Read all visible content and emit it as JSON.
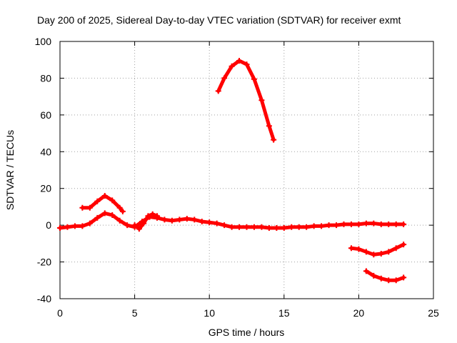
{
  "chart_data": {
    "type": "scatter",
    "title": "Day 200 of 2025, Sidereal Day-to-day VTEC variation (SDTVAR) for receiver exmt",
    "xlabel": "GPS time / hours",
    "ylabel": "SDTVAR / TECUs",
    "xlim": [
      0,
      25
    ],
    "ylim": [
      -40,
      100
    ],
    "xticks": [
      0,
      5,
      10,
      15,
      20,
      25
    ],
    "yticks": [
      -40,
      -20,
      0,
      20,
      40,
      60,
      80,
      100
    ],
    "grid": true,
    "legend": "none",
    "marker": "plus",
    "color": "#ff0000",
    "series": [
      {
        "name": "arc-main",
        "points": [
          [
            0.0,
            -1.5
          ],
          [
            0.5,
            -1.0
          ],
          [
            1.0,
            -0.5
          ],
          [
            1.5,
            -0.5
          ],
          [
            2.0,
            1.0
          ],
          [
            2.5,
            4.0
          ],
          [
            3.0,
            6.5
          ],
          [
            3.5,
            5.5
          ],
          [
            4.0,
            2.5
          ],
          [
            4.5,
            0.0
          ],
          [
            5.0,
            -1.0
          ],
          [
            5.5,
            2.0
          ],
          [
            6.0,
            4.5
          ],
          [
            6.5,
            4.0
          ],
          [
            7.0,
            3.0
          ],
          [
            7.5,
            2.5
          ],
          [
            8.0,
            3.0
          ],
          [
            8.5,
            3.5
          ],
          [
            9.0,
            3.0
          ],
          [
            9.5,
            2.0
          ],
          [
            10.0,
            1.5
          ],
          [
            10.5,
            1.0
          ],
          [
            11.0,
            0.0
          ],
          [
            11.5,
            -1.0
          ],
          [
            12.0,
            -1.0
          ],
          [
            12.5,
            -1.0
          ],
          [
            13.0,
            -1.0
          ],
          [
            13.5,
            -1.0
          ],
          [
            14.0,
            -1.5
          ],
          [
            14.5,
            -1.5
          ],
          [
            15.0,
            -1.5
          ],
          [
            15.5,
            -1.0
          ],
          [
            16.0,
            -1.0
          ],
          [
            16.5,
            -1.0
          ],
          [
            17.0,
            -0.5
          ],
          [
            17.5,
            -0.5
          ],
          [
            18.0,
            0.0
          ],
          [
            18.5,
            0.0
          ],
          [
            19.0,
            0.5
          ],
          [
            19.5,
            0.5
          ],
          [
            20.0,
            0.5
          ],
          [
            20.5,
            1.0
          ],
          [
            21.0,
            1.0
          ],
          [
            21.5,
            0.5
          ],
          [
            22.0,
            0.5
          ],
          [
            22.5,
            0.5
          ],
          [
            23.0,
            0.5
          ]
        ]
      },
      {
        "name": "arc-dip",
        "points": [
          [
            5.0,
            0.0
          ],
          [
            5.3,
            -2.0
          ],
          [
            5.6,
            1.0
          ],
          [
            5.9,
            5.0
          ],
          [
            6.2,
            6.0
          ],
          [
            6.5,
            5.0
          ]
        ]
      },
      {
        "name": "arc-early-peak",
        "points": [
          [
            1.5,
            9.5
          ],
          [
            2.0,
            9.5
          ],
          [
            2.5,
            13.0
          ],
          [
            3.0,
            16.0
          ],
          [
            3.5,
            13.5
          ],
          [
            4.0,
            9.5
          ],
          [
            4.2,
            7.5
          ]
        ]
      },
      {
        "name": "arc-high-peak",
        "points": [
          [
            10.6,
            73.0
          ],
          [
            11.0,
            80.0
          ],
          [
            11.5,
            86.5
          ],
          [
            12.0,
            89.5
          ],
          [
            12.5,
            87.5
          ],
          [
            13.0,
            79.5
          ],
          [
            13.5,
            68.0
          ],
          [
            14.0,
            54.0
          ],
          [
            14.3,
            46.5
          ]
        ]
      },
      {
        "name": "arc-negative-1",
        "points": [
          [
            19.5,
            -12.5
          ],
          [
            20.0,
            -13.0
          ],
          [
            20.5,
            -14.5
          ],
          [
            21.0,
            -16.0
          ],
          [
            21.5,
            -15.5
          ],
          [
            22.0,
            -14.5
          ],
          [
            22.5,
            -12.5
          ],
          [
            23.0,
            -10.5
          ]
        ]
      },
      {
        "name": "arc-negative-2",
        "points": [
          [
            20.5,
            -25.0
          ],
          [
            21.0,
            -27.5
          ],
          [
            21.5,
            -29.0
          ],
          [
            22.0,
            -30.0
          ],
          [
            22.5,
            -30.0
          ],
          [
            23.0,
            -28.5
          ]
        ]
      }
    ]
  }
}
